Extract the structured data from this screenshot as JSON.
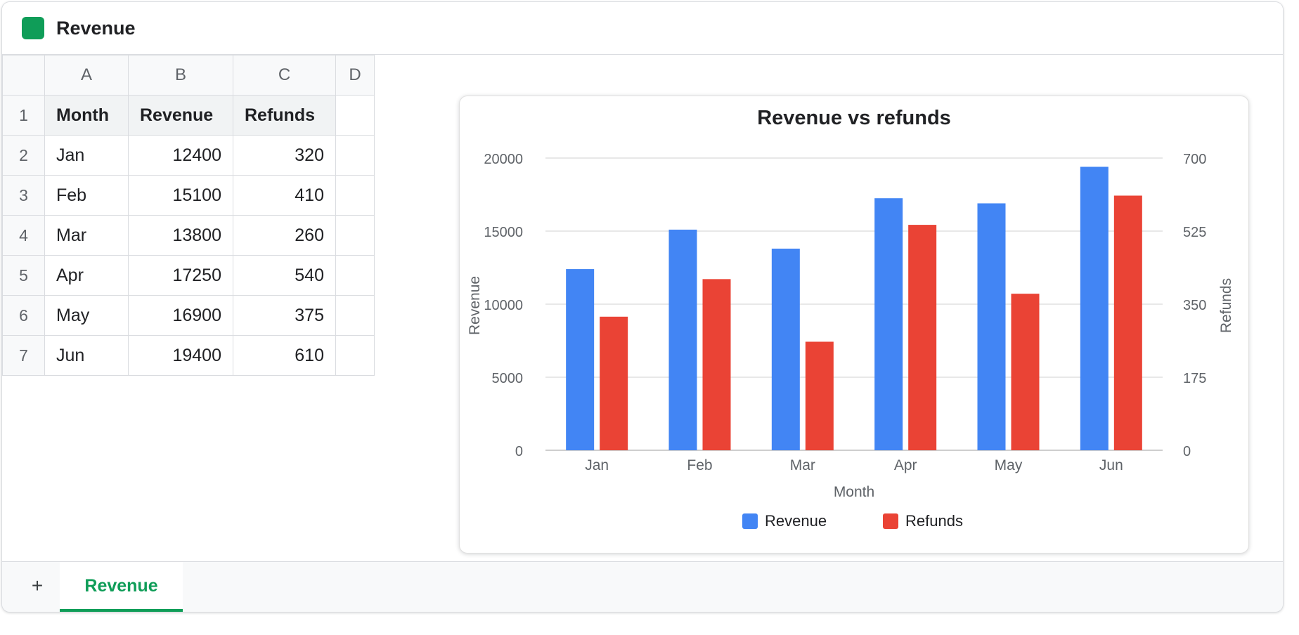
{
  "app": {
    "title": "Revenue",
    "icon": "sheets-icon",
    "accent": "#0f9d58"
  },
  "sheet": {
    "column_headers": [
      "A",
      "B",
      "C",
      "D"
    ],
    "row_numbers": [
      "1",
      "2",
      "3",
      "4",
      "5",
      "6",
      "7"
    ],
    "header_row": [
      "Month",
      "Revenue",
      "Refunds"
    ],
    "rows": [
      [
        "Jan",
        "12400",
        "320"
      ],
      [
        "Feb",
        "15100",
        "410"
      ],
      [
        "Mar",
        "13800",
        "260"
      ],
      [
        "Apr",
        "17250",
        "540"
      ],
      [
        "May",
        "16900",
        "375"
      ],
      [
        "Jun",
        "19400",
        "610"
      ]
    ]
  },
  "chart_data": {
    "type": "bar",
    "title": "Revenue vs refunds",
    "xlabel": "Month",
    "ylabel": "Revenue",
    "y2label": "Refunds",
    "categories": [
      "Jan",
      "Feb",
      "Mar",
      "Apr",
      "May",
      "Jun"
    ],
    "ylim": [
      0,
      20000
    ],
    "y_ticks": [
      "0",
      "5000",
      "10000",
      "15000",
      "20000"
    ],
    "y2lim": [
      0,
      700
    ],
    "y2_ticks": [
      "0",
      "175",
      "350",
      "525",
      "700"
    ],
    "grid": true,
    "legend_position": "bottom",
    "series": [
      {
        "name": "Revenue",
        "axis": "left",
        "color": "#4285f4",
        "values": [
          12400,
          15100,
          13800,
          17250,
          16900,
          19400
        ]
      },
      {
        "name": "Refunds",
        "axis": "right",
        "color": "#ea4335",
        "values": [
          320,
          410,
          260,
          540,
          375,
          610
        ]
      }
    ]
  },
  "tabs": {
    "add_label": "+",
    "items": [
      {
        "label": "Revenue",
        "active": true
      }
    ]
  }
}
